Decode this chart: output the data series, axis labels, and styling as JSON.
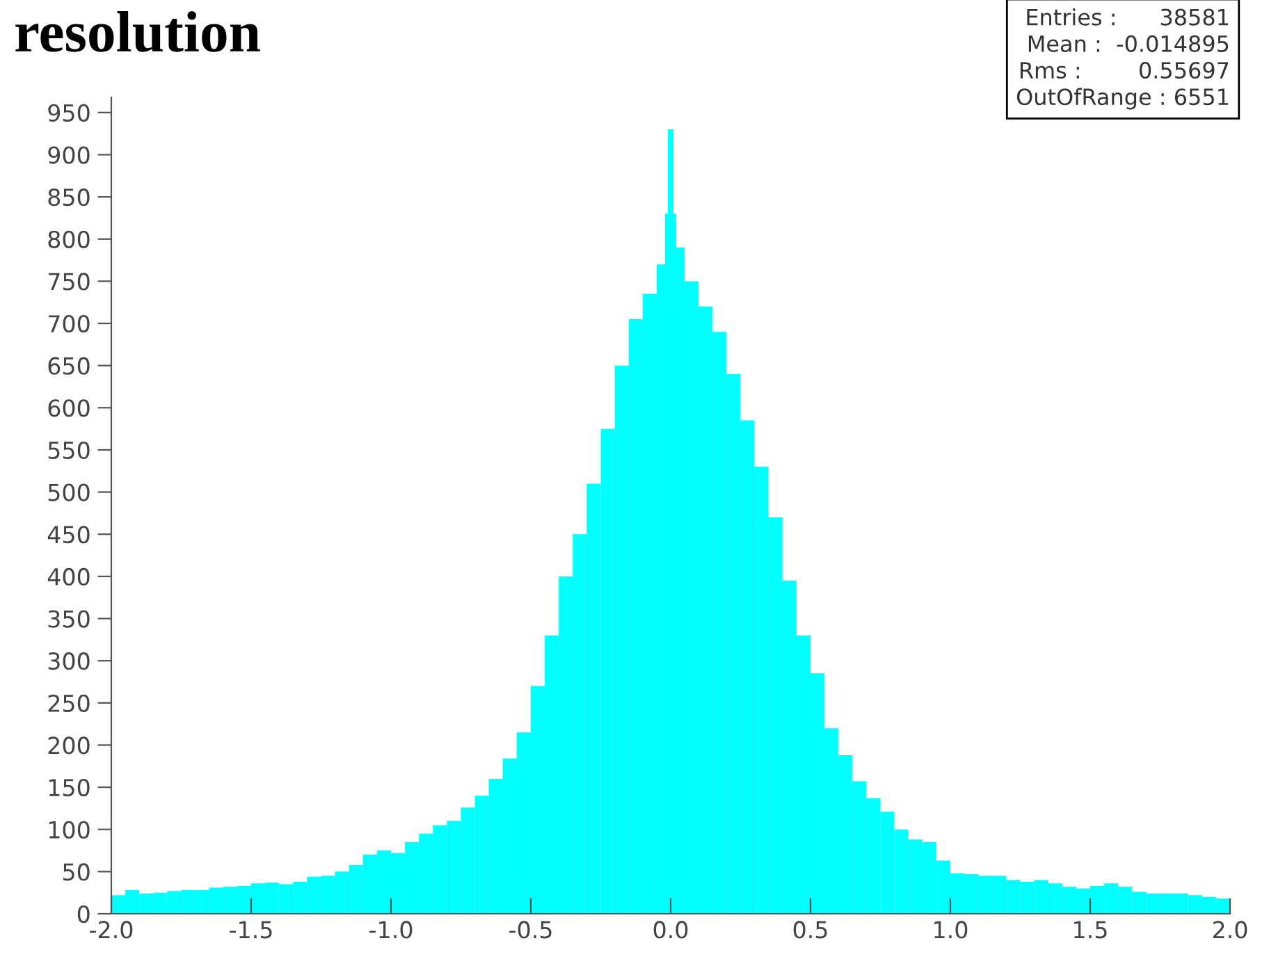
{
  "chart_data": {
    "type": "histogram",
    "title": "resolution",
    "bins": [
      -2.0,
      -1.95,
      -1.9,
      -1.85,
      -1.8,
      -1.75,
      -1.7,
      -1.65,
      -1.6,
      -1.55,
      -1.5,
      -1.45,
      -1.4,
      -1.35,
      -1.3,
      -1.25,
      -1.2,
      -1.15,
      -1.1,
      -1.05,
      -1.0,
      -0.95,
      -0.9,
      -0.85,
      -0.8,
      -0.75,
      -0.7,
      -0.65,
      -0.6,
      -0.55,
      -0.5,
      -0.45,
      -0.4,
      -0.35,
      -0.3,
      -0.25,
      -0.2,
      -0.15,
      -0.1,
      -0.05,
      -0.02,
      -0.01,
      0.01,
      0.02,
      0.05,
      0.1,
      0.15,
      0.2,
      0.25,
      0.3,
      0.35,
      0.4,
      0.45,
      0.5,
      0.55,
      0.6,
      0.65,
      0.7,
      0.75,
      0.8,
      0.85,
      0.9,
      0.95,
      1.0,
      1.05,
      1.1,
      1.15,
      1.2,
      1.25,
      1.3,
      1.35,
      1.4,
      1.45,
      1.5,
      1.55,
      1.6,
      1.65,
      1.7,
      1.75,
      1.8,
      1.85,
      1.9,
      1.95,
      2.0
    ],
    "values": [
      22,
      28,
      24,
      25,
      27,
      28,
      28,
      31,
      32,
      33,
      36,
      37,
      35,
      38,
      44,
      45,
      50,
      58,
      70,
      75,
      72,
      85,
      95,
      105,
      110,
      126,
      140,
      160,
      184,
      215,
      270,
      330,
      400,
      450,
      510,
      575,
      650,
      705,
      735,
      770,
      830,
      930,
      830,
      790,
      750,
      720,
      690,
      640,
      585,
      530,
      470,
      395,
      330,
      285,
      220,
      188,
      157,
      137,
      121,
      100,
      88,
      85,
      63,
      48,
      47,
      45,
      45,
      40,
      38,
      40,
      36,
      32,
      30,
      33,
      36,
      32,
      26,
      24,
      24,
      24,
      22,
      20,
      18
    ],
    "color": "#00ffff",
    "xlim": [
      -2.0,
      2.0
    ],
    "xticks": [
      {
        "value": -2.0,
        "label": "-2.0"
      },
      {
        "value": -1.5,
        "label": "-1.5"
      },
      {
        "value": -1.0,
        "label": "-1.0"
      },
      {
        "value": -0.5,
        "label": "-0.5"
      },
      {
        "value": 0.0,
        "label": "0.0"
      },
      {
        "value": 0.5,
        "label": "0.5"
      },
      {
        "value": 1.0,
        "label": "1.0"
      },
      {
        "value": 1.5,
        "label": "1.5"
      },
      {
        "value": 2.0,
        "label": "2.0"
      }
    ],
    "ylim": [
      0,
      968
    ],
    "yticks": [
      0,
      50,
      100,
      150,
      200,
      250,
      300,
      350,
      400,
      450,
      500,
      550,
      600,
      650,
      700,
      750,
      800,
      850,
      900,
      950
    ],
    "grid": false,
    "annotations": [
      "Entries :      38581",
      "Mean :  -0.014895",
      "Rms :        0.55697",
      "OutOfRange : 6551"
    ]
  }
}
